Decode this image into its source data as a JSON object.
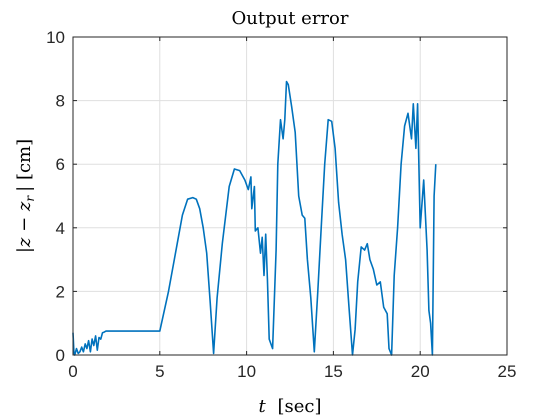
{
  "chart_data": {
    "type": "line",
    "title": "Output error",
    "xlabel_var": "t",
    "xlabel_unit": "[sec]",
    "ylabel_math": "|z − z",
    "ylabel_sub": "r",
    "ylabel_rest": "| [cm]",
    "xlim": [
      0,
      25
    ],
    "ylim": [
      0,
      10
    ],
    "xticks": [
      "0",
      "5",
      "10",
      "15",
      "20",
      "25"
    ],
    "yticks": [
      "0",
      "2",
      "4",
      "6",
      "8",
      "10"
    ],
    "grid": true,
    "color": "#0072BD",
    "series": [
      {
        "x": [
          0,
          0.05,
          0.1,
          0.2,
          0.3,
          0.4,
          0.5,
          0.6,
          0.7,
          0.8,
          0.9,
          1.0,
          1.1,
          1.2,
          1.3,
          1.4,
          1.5,
          1.6,
          1.7,
          1.8,
          1.9,
          2.0,
          2.5,
          3.0,
          4.0,
          5.0,
          5.5,
          6.0,
          6.3,
          6.6,
          6.9,
          7.1,
          7.3,
          7.5,
          7.7,
          7.9,
          8.1,
          8.3,
          8.6,
          9.0,
          9.3,
          9.6,
          9.9,
          10.1,
          10.25,
          10.3,
          10.45,
          10.5,
          10.65,
          10.8,
          10.9,
          11.0,
          11.1,
          11.2,
          11.3,
          11.5,
          11.7,
          11.8,
          11.95,
          12.1,
          12.2,
          12.3,
          12.4,
          12.6,
          12.8,
          13.0,
          13.2,
          13.35,
          13.5,
          13.7,
          13.9,
          14.1,
          14.3,
          14.5,
          14.7,
          14.9,
          15.1,
          15.3,
          15.5,
          15.7,
          15.9,
          16.1,
          16.25,
          16.4,
          16.6,
          16.8,
          16.95,
          17.1,
          17.3,
          17.5,
          17.7,
          17.9,
          18.1,
          18.2,
          18.35,
          18.5,
          18.7,
          18.9,
          19.1,
          19.3,
          19.5,
          19.6,
          19.75,
          19.85,
          20.0,
          20.2,
          20.4,
          20.5,
          20.6,
          20.7,
          20.8,
          20.9
        ],
        "y": [
          0.7,
          0.1,
          0.0,
          0.2,
          0.05,
          0.1,
          0.25,
          0.1,
          0.35,
          0.2,
          0.45,
          0.1,
          0.5,
          0.3,
          0.6,
          0.15,
          0.55,
          0.5,
          0.7,
          0.72,
          0.75,
          0.75,
          0.75,
          0.75,
          0.75,
          0.75,
          2.0,
          3.5,
          4.4,
          4.9,
          4.95,
          4.9,
          4.6,
          4.0,
          3.2,
          1.7,
          0.05,
          1.8,
          3.5,
          5.3,
          5.85,
          5.8,
          5.5,
          5.2,
          5.6,
          4.6,
          5.3,
          3.9,
          4.0,
          3.2,
          3.7,
          2.5,
          3.8,
          2.4,
          0.5,
          0.2,
          3.3,
          6.0,
          7.4,
          6.8,
          7.4,
          8.6,
          8.5,
          7.8,
          7.0,
          5.0,
          4.4,
          4.3,
          3.0,
          1.8,
          0.1,
          2.0,
          4.0,
          6.0,
          7.4,
          7.35,
          6.5,
          4.8,
          3.8,
          3.0,
          1.5,
          0.0,
          0.8,
          2.3,
          3.4,
          3.3,
          3.5,
          3.0,
          2.7,
          2.2,
          2.3,
          1.5,
          1.3,
          0.2,
          0.0,
          2.5,
          4.0,
          6.0,
          7.2,
          7.6,
          6.8,
          7.9,
          6.5,
          7.9,
          4.0,
          5.5,
          3.3,
          1.4,
          1.0,
          0.0,
          5.0,
          6.0
        ]
      }
    ]
  }
}
